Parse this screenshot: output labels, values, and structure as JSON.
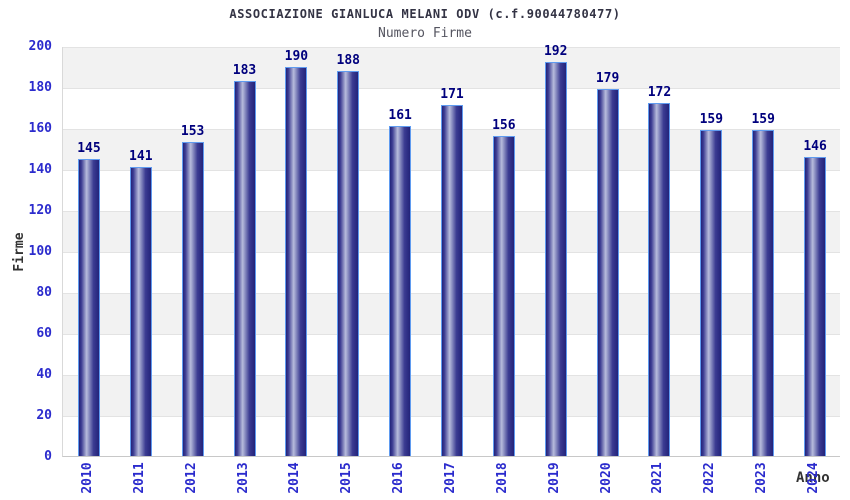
{
  "chart_data": {
    "type": "bar",
    "title": "ASSOCIAZIONE GIANLUCA MELANI ODV (c.f.90044780477)",
    "subtitle": "Numero Firme",
    "xlabel": "Anno",
    "ylabel": "Firme",
    "categories": [
      "2010",
      "2011",
      "2012",
      "2013",
      "2014",
      "2015",
      "2016",
      "2017",
      "2018",
      "2019",
      "2020",
      "2021",
      "2022",
      "2023",
      "2024"
    ],
    "values": [
      145,
      141,
      153,
      183,
      190,
      188,
      161,
      171,
      156,
      192,
      179,
      172,
      159,
      159,
      146
    ],
    "ylim": [
      0,
      200
    ],
    "ytick_interval": 20,
    "grid": "alternating-horizontal-bands",
    "legend": "none",
    "bar_value_labels_shown": true,
    "colors": {
      "title": "#333344",
      "subtitle": "#555560",
      "tick_label": "#2b2bcd",
      "value_label": "#00007d",
      "axis_title": "#333333",
      "bar_edge": "#23237a",
      "bar_mid": "#3c3c92",
      "bar_highlight": "#b7bcdc",
      "bar_border": "#5f9bf0",
      "band": "#f2f2f2"
    }
  }
}
